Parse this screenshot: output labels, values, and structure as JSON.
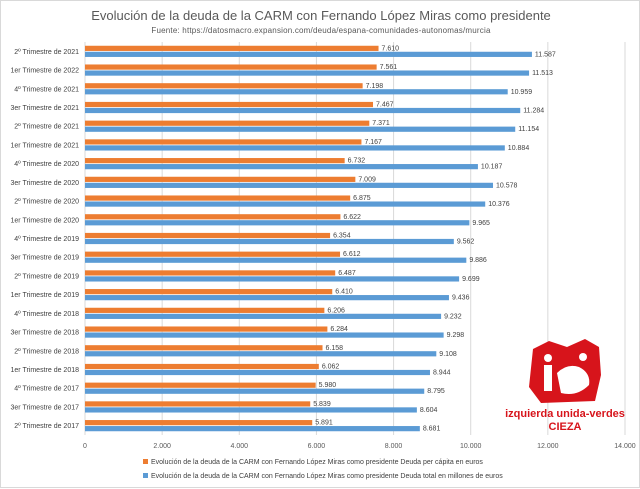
{
  "chart_data": {
    "type": "bar",
    "orientation": "horizontal",
    "title": "Evolución de la deuda de la CARM con Fernando López Miras como presidente",
    "subtitle": "Fuente: https://datosmacro.expansion.com/deuda/espana-comunidades-autonomas/murcia",
    "categories": [
      "2º Trimestre de 2021",
      "1er Trimestre de 2022",
      "4º Trimestre de 2021",
      "3er Trimestre de 2021",
      "2º Trimestre de 2021",
      "1er Trimestre de 2021",
      "4º Trimestre de 2020",
      "3er Trimestre de 2020",
      "2º Trimestre de 2020",
      "1er Trimestre de 2020",
      "4º Trimestre de 2019",
      "3er Trimestre de 2019",
      "2º Trimestre de 2019",
      "1er Trimestre de 2019",
      "4º Trimestre de 2018",
      "3er Trimestre de 2018",
      "2º Trimestre de 2018",
      "1er Trimestre de 2018",
      "4º Trimestre de 2017",
      "3er Trimestre de 2017",
      "2º Trimestre de 2017"
    ],
    "series": [
      {
        "name": "Evolución de la deuda de la CARM con Fernando López Miras como presidente  Deuda per cápita en euros",
        "color": "#ed7d31",
        "values": [
          7610,
          7561,
          7198,
          7467,
          7371,
          7167,
          6732,
          7009,
          6875,
          6622,
          6354,
          6612,
          6487,
          6410,
          6206,
          6284,
          6158,
          6062,
          5980,
          5839,
          5891
        ],
        "labels": [
          "7.610",
          "7.561",
          "7.198",
          "7.467",
          "7.371",
          "7.167",
          "6.732",
          "7.009",
          "6.875",
          "6.622",
          "6.354",
          "6.612",
          "6.487",
          "6.410",
          "6.206",
          "6.284",
          "6.158",
          "6.062",
          "5.980",
          "5.839",
          "5.891"
        ]
      },
      {
        "name": "Evolución de la deuda de la CARM con Fernando López Miras como presidente  Deuda total en millones de euros",
        "color": "#5b9bd5",
        "values": [
          11587,
          11513,
          10959,
          11284,
          11154,
          10884,
          10187,
          10578,
          10376,
          9965,
          9562,
          9886,
          9699,
          9436,
          9232,
          9298,
          9108,
          8944,
          8795,
          8604,
          8681
        ],
        "labels": [
          "11.587",
          "11.513",
          "10.959",
          "11.284",
          "11.154",
          "10.884",
          "10.187",
          "10.578",
          "10.376",
          "9.965",
          "9.562",
          "9.886",
          "9.699",
          "9.436",
          "9.232",
          "9.298",
          "9.108",
          "8.944",
          "8.795",
          "8.604",
          "8.681"
        ]
      }
    ],
    "xlim": [
      0,
      14000
    ],
    "xticks": [
      0,
      2000,
      4000,
      6000,
      8000,
      10000,
      12000,
      14000
    ],
    "xtick_labels": [
      "0",
      "2.000",
      "4.000",
      "6.000",
      "8.000",
      "10.000",
      "12.000",
      "14.000"
    ],
    "grid": true,
    "legend_position": "bottom"
  },
  "logo": {
    "text_line1": "izquierda unida-verdes",
    "text_line2": "CIEZA",
    "mark": "iu",
    "color": "#d7141b"
  }
}
